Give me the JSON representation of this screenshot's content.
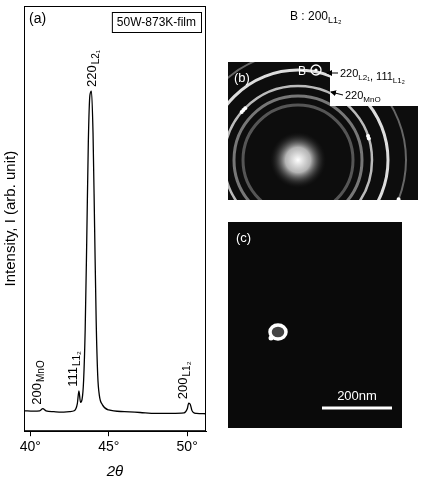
{
  "chart_data": {
    "type": "line",
    "panel": "(a)",
    "title": "50W-873K-film",
    "x_label": "2θ",
    "y_label": "Intensity, I (arb. unit)",
    "color": "#000000",
    "x": [
      39.6,
      40.2,
      40.6,
      40.8,
      41.0,
      41.5,
      42.0,
      42.5,
      42.8,
      43.0,
      43.1,
      43.2,
      43.3,
      43.4,
      43.5,
      43.6,
      43.7,
      43.8,
      43.9,
      44.0,
      44.1,
      44.2,
      44.3,
      44.4,
      44.6,
      45.0,
      46.0,
      47.0,
      48.0,
      49.0,
      49.8,
      50.0,
      50.1,
      50.2,
      50.3,
      50.4,
      50.6,
      51.2
    ],
    "values": [
      4.8,
      4.7,
      4.8,
      5.3,
      4.8,
      4.6,
      4.5,
      4.6,
      4.8,
      6.5,
      9.5,
      6.8,
      7.5,
      12,
      24,
      45,
      68,
      79,
      80,
      70,
      48,
      26,
      13,
      8.5,
      6.2,
      5.0,
      4.6,
      4.4,
      4.2,
      4.2,
      4.3,
      5.2,
      6.6,
      6.3,
      4.9,
      4.4,
      4.2,
      4.1
    ],
    "xlim": [
      39.6,
      51.2
    ],
    "xticks": [
      {
        "value": 40,
        "label": "40°"
      },
      {
        "value": 45,
        "label": "45°"
      },
      {
        "value": 50,
        "label": "50°"
      }
    ],
    "ylim": [
      0,
      100
    ],
    "tick_labels": "x",
    "grid": false,
    "annotations": [
      {
        "x": 40.8,
        "y": 5.3,
        "text": "200",
        "sub": "MnO"
      },
      {
        "x": 43.1,
        "y": 9.5,
        "text": "111",
        "sub": "L1₂"
      },
      {
        "x": 43.9,
        "y": 80,
        "text": "220",
        "sub": "L2₁"
      },
      {
        "x": 50.1,
        "y": 6.6,
        "text": "200",
        "sub": "L1₂"
      }
    ]
  },
  "panels": [
    {
      "label": "(b)",
      "caption": [
        {
          "text": "B : 200",
          "sub": "L1₂"
        }
      ],
      "spot_label": "B",
      "ring_labels": [
        [
          {
            "text": "220",
            "sub": "L2₁"
          },
          {
            "text": ", 111",
            "sub": "L1₂"
          }
        ],
        [
          {
            "text": "220",
            "sub": "MnO"
          }
        ]
      ]
    },
    {
      "label": "(c)",
      "scale_bar": "200nm"
    }
  ]
}
